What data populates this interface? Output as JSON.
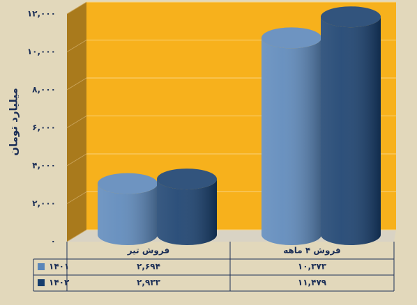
{
  "chart_data": {
    "type": "bar",
    "y_label": "میلیارد تومان",
    "categories": [
      "فروش تیر",
      "فروش ۴ ماهه"
    ],
    "series": [
      {
        "name": "۱۴۰۱",
        "color": "#5a86b9",
        "values": [
          2694,
          10373
        ],
        "value_labels": [
          "۲,۶۹۴",
          "۱۰,۳۷۳"
        ]
      },
      {
        "name": "۱۴۰۲",
        "color": "#163d6c",
        "values": [
          2933,
          11479
        ],
        "value_labels": [
          "۲,۹۳۳",
          "۱۱,۴۷۹"
        ]
      }
    ],
    "ylim": [
      0,
      12000
    ],
    "yticks": [
      {
        "value": 0,
        "label": "۰"
      },
      {
        "value": 2000,
        "label": "۲,۰۰۰"
      },
      {
        "value": 4000,
        "label": "۴,۰۰۰"
      },
      {
        "value": 6000,
        "label": "۶,۰۰۰"
      },
      {
        "value": 8000,
        "label": "۸,۰۰۰"
      },
      {
        "value": 10000,
        "label": "۱۰,۰۰۰"
      },
      {
        "value": 12000,
        "label": "۱۲,۰۰۰"
      }
    ],
    "grid": true
  }
}
